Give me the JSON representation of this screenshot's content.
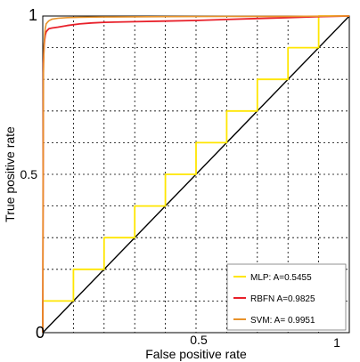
{
  "chart_data": {
    "type": "line",
    "title": "",
    "xlabel": "False positive rate",
    "ylabel": "True positive rate",
    "xlim": [
      0,
      1
    ],
    "ylim": [
      0,
      1
    ],
    "x_ticks": [
      {
        "value": 0,
        "label": "0"
      },
      {
        "value": 0.5,
        "label": "0.5"
      },
      {
        "value": 1,
        "label": "1"
      }
    ],
    "y_ticks": [
      {
        "value": 0.5,
        "label": "0.5"
      },
      {
        "value": 1,
        "label": "1"
      }
    ],
    "grid": "dotted",
    "legend_position": "bottom-right",
    "series": [
      {
        "name": "MLP: A=0.5455",
        "color": "#ffe600",
        "x": [
          0,
          0,
          0.1,
          0.1,
          0.2,
          0.2,
          0.3,
          0.3,
          0.4,
          0.4,
          0.5,
          0.5,
          0.6,
          0.6,
          0.7,
          0.7,
          0.8,
          0.8,
          0.9,
          0.9,
          1.0
        ],
        "y": [
          0,
          0.1,
          0.1,
          0.2,
          0.2,
          0.3,
          0.3,
          0.4,
          0.4,
          0.5,
          0.5,
          0.6,
          0.6,
          0.7,
          0.7,
          0.8,
          0.8,
          0.9,
          0.9,
          1.0,
          1.0
        ]
      },
      {
        "name": "RBFN A=0.9825",
        "color": "#e8202a",
        "x": [
          0,
          0.002,
          0.004,
          0.006,
          0.008,
          0.011,
          0.015,
          0.02,
          0.03,
          0.05,
          0.08,
          0.12,
          0.16,
          0.2,
          0.3,
          0.4,
          0.5,
          0.6,
          0.7,
          0.8,
          0.9,
          1.0
        ],
        "y": [
          0,
          0.85,
          0.9,
          0.925,
          0.94,
          0.95,
          0.955,
          0.96,
          0.962,
          0.965,
          0.97,
          0.975,
          0.978,
          0.98,
          0.982,
          0.984,
          0.986,
          0.989,
          0.992,
          0.995,
          0.998,
          1.0
        ]
      },
      {
        "name": "SVM: A= 0.9951",
        "color": "#e8922a",
        "x": [
          0,
          0.002,
          0.004,
          0.006,
          0.008,
          0.011,
          0.015,
          0.02,
          0.03,
          0.05,
          0.08,
          0.12,
          0.2,
          0.4,
          0.6,
          0.8,
          1.0
        ],
        "y": [
          0,
          0.82,
          0.9,
          0.94,
          0.96,
          0.975,
          0.98,
          0.985,
          0.99,
          0.993,
          0.995,
          0.996,
          0.997,
          0.998,
          0.999,
          0.999,
          1.0
        ]
      },
      {
        "name": "",
        "color": "#000000",
        "x": [
          0,
          1
        ],
        "y": [
          0,
          1
        ]
      }
    ]
  }
}
